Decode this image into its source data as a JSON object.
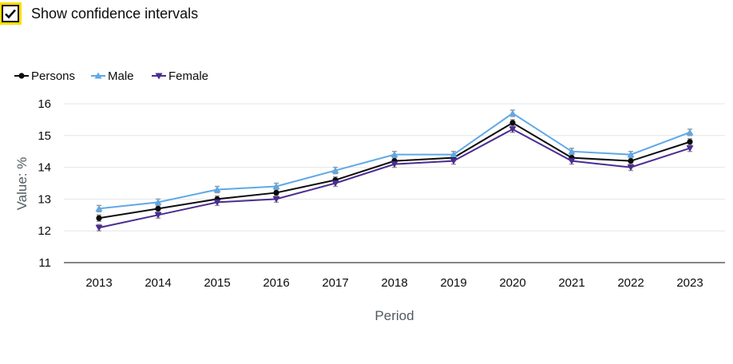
{
  "controls": {
    "confidence_label": "Show confidence intervals",
    "confidence_checked": true
  },
  "colors": {
    "Persons": "#0b0c0c",
    "Male": "#5fa8e6",
    "Female": "#4c2c92",
    "ci": "#9a9a9a",
    "grid": "#e6e6e6"
  },
  "chart_data": {
    "type": "line",
    "xlabel": "Period",
    "ylabel": "Value: %",
    "ylim": [
      11,
      16
    ],
    "yticks": [
      11,
      12,
      13,
      14,
      15,
      16
    ],
    "categories": [
      "2013",
      "2014",
      "2015",
      "2016",
      "2017",
      "2018",
      "2019",
      "2020",
      "2021",
      "2022",
      "2023"
    ],
    "legend_position": "top-left",
    "grid": true,
    "series": [
      {
        "name": "Persons",
        "marker": "circle",
        "values": [
          12.4,
          12.7,
          13.0,
          13.2,
          13.6,
          14.2,
          14.3,
          15.4,
          14.3,
          14.2,
          14.8
        ]
      },
      {
        "name": "Male",
        "marker": "triangle-up",
        "values": [
          12.7,
          12.9,
          13.3,
          13.4,
          13.9,
          14.4,
          14.4,
          15.7,
          14.5,
          14.4,
          15.1
        ]
      },
      {
        "name": "Female",
        "marker": "triangle-down",
        "values": [
          12.1,
          12.5,
          12.9,
          13.0,
          13.5,
          14.1,
          14.2,
          15.2,
          14.2,
          14.0,
          14.6
        ]
      }
    ]
  }
}
